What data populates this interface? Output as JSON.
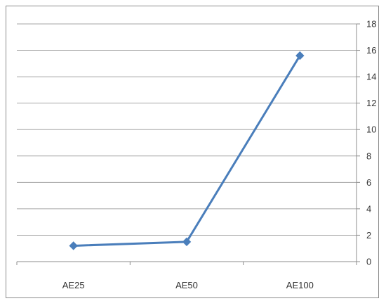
{
  "chart_data": {
    "type": "line",
    "categories": [
      "AE25",
      "AE50",
      "AE100"
    ],
    "series": [
      {
        "values": [
          1.2,
          1.5,
          15.6
        ],
        "color": "#4a7ebb",
        "marker": "diamond"
      }
    ],
    "y_axis": {
      "position": "right",
      "ylim": [
        0,
        18
      ],
      "ticks": [
        "0",
        "2",
        "4",
        "6",
        "8",
        "10",
        "12",
        "14",
        "16",
        "18"
      ]
    },
    "grid": true,
    "legend": "none"
  }
}
